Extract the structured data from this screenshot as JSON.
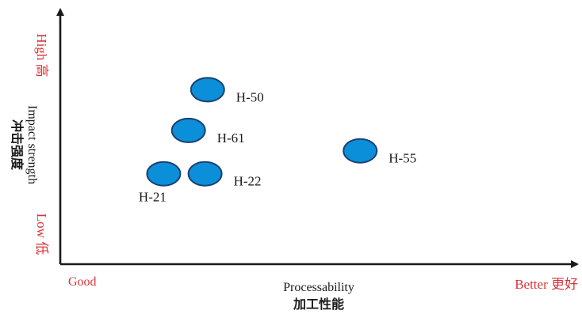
{
  "chart_data": {
    "type": "scatter",
    "title": "",
    "xlabel": "Processability",
    "xlabel_cn": "加工性能",
    "ylabel": "Impact strength",
    "ylabel_cn": "冲击强度",
    "x_low_label": "Good",
    "x_high_label": "Better 更好",
    "y_high_label": "High 高",
    "y_low_label": "Low 低",
    "xlim": [
      0,
      100
    ],
    "ylim": [
      0,
      100
    ],
    "grid": false,
    "legend": "none",
    "marker_color": "#0b8fd8",
    "marker_edge_color": "#1b3f73",
    "points": [
      {
        "label": "H-50",
        "x": 28.5,
        "y": 68.5,
        "label_pos": "right"
      },
      {
        "label": "H-61",
        "x": 24.8,
        "y": 52.5,
        "label_pos": "right"
      },
      {
        "label": "H-21",
        "x": 20.0,
        "y": 35.5,
        "label_pos": "below"
      },
      {
        "label": "H-22",
        "x": 28.0,
        "y": 35.5,
        "label_pos": "right"
      },
      {
        "label": "H-55",
        "x": 58.0,
        "y": 44.5,
        "label_pos": "right"
      }
    ]
  }
}
